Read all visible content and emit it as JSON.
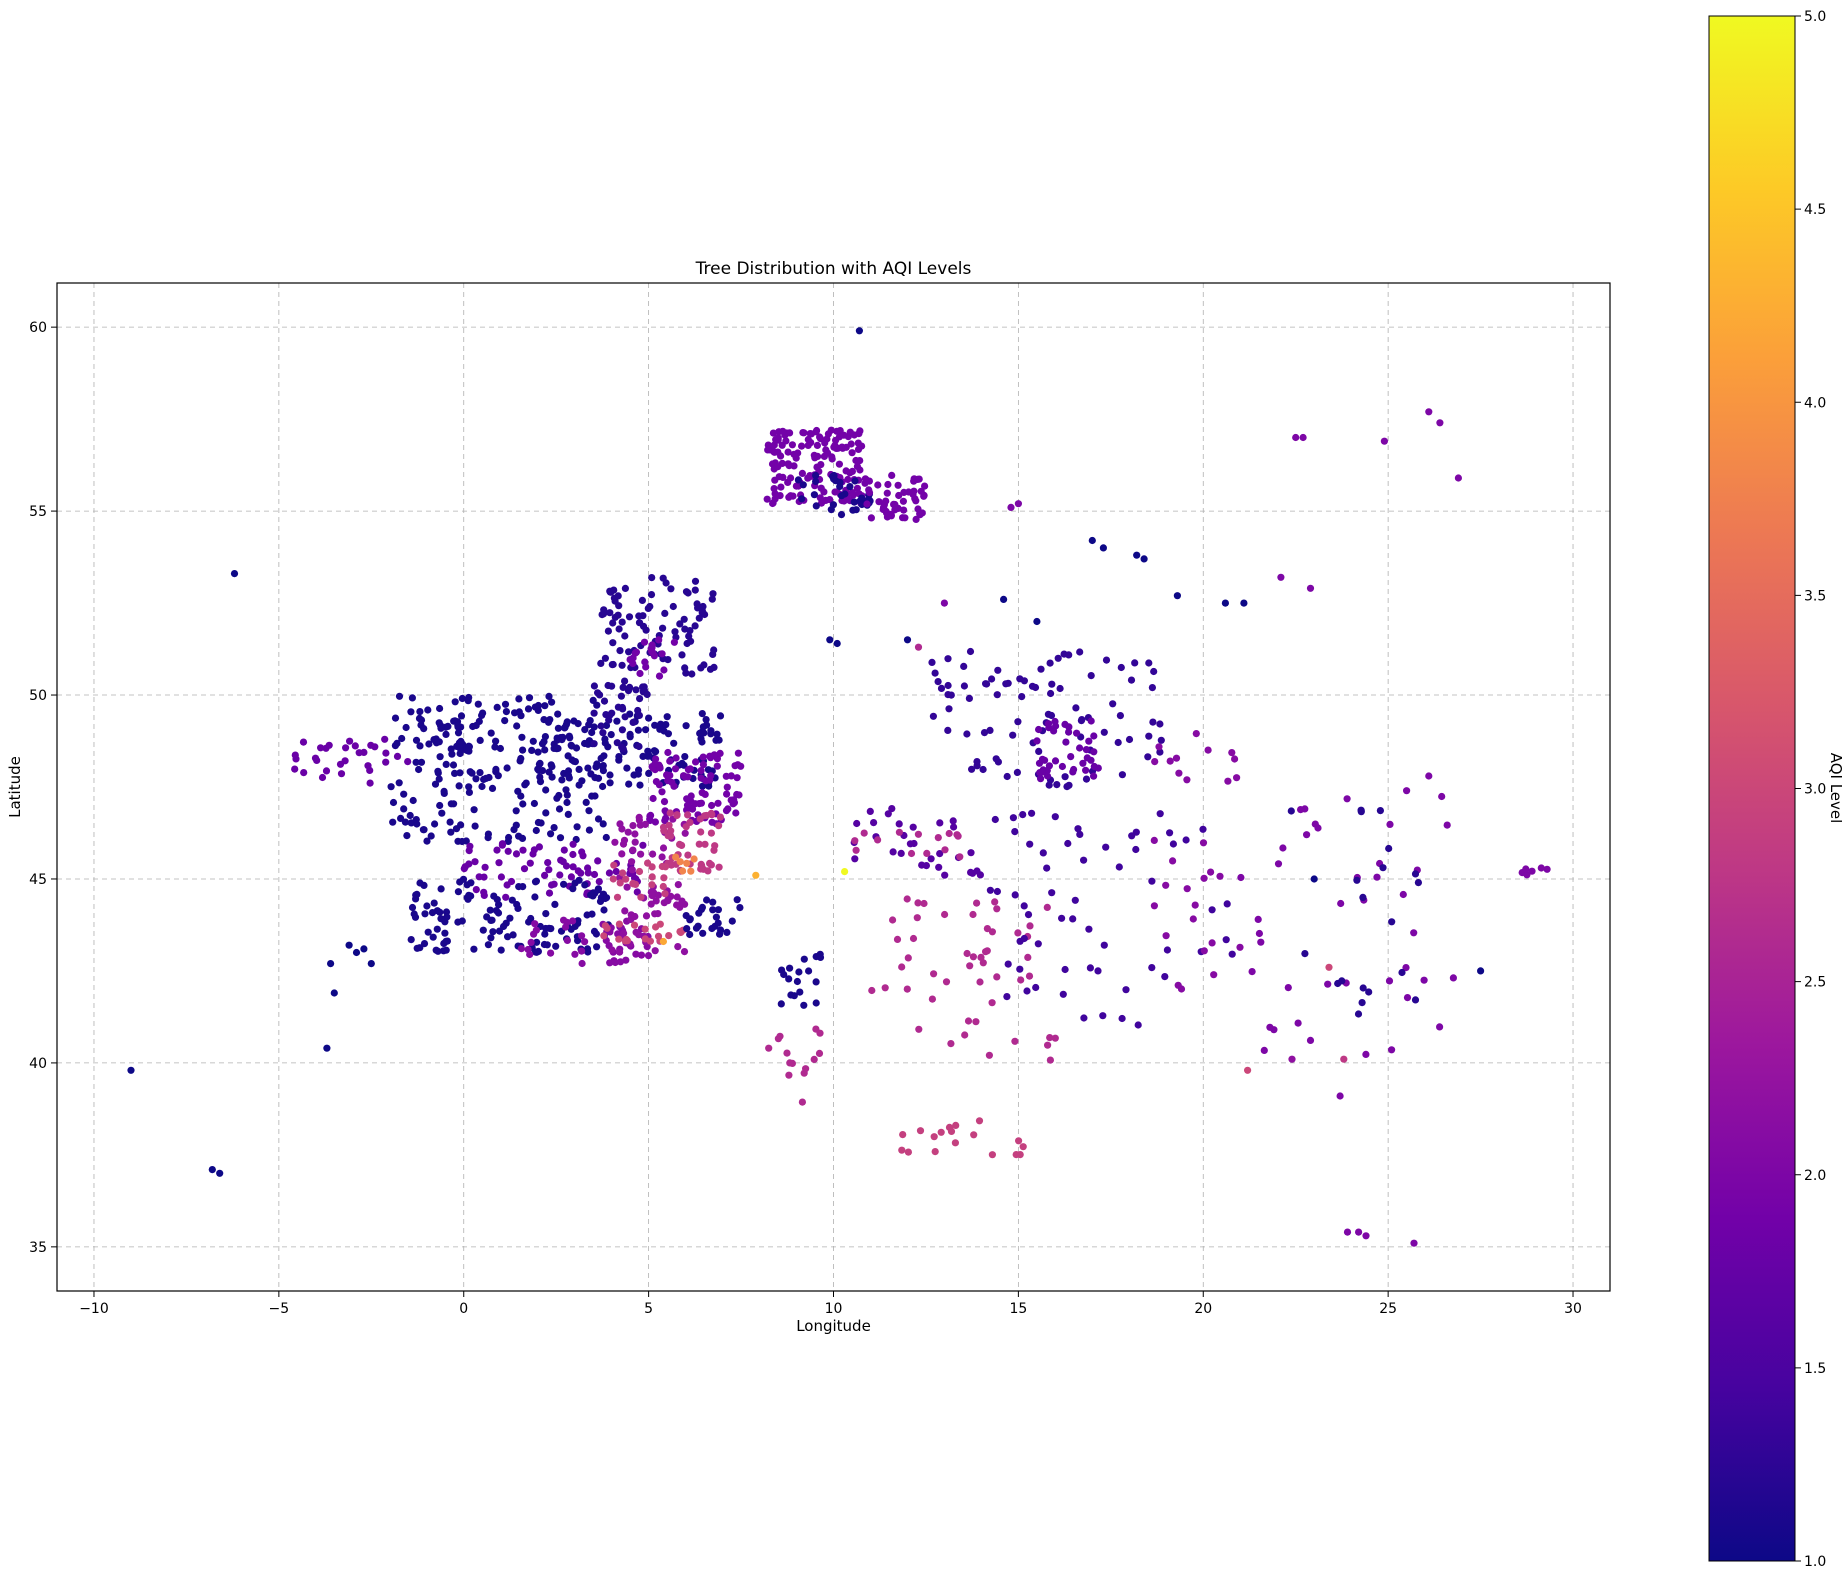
{
  "chart_data": {
    "type": "scatter",
    "title": "Tree Distribution with AQI Levels",
    "xlabel": "Longitude",
    "ylabel": "Latitude",
    "xlim": [
      -11,
      31
    ],
    "ylim": [
      33.8,
      61.2
    ],
    "xticks": [
      -10,
      -5,
      0,
      5,
      10,
      15,
      20,
      25,
      30
    ],
    "xtick_labels": [
      "−10",
      "−5",
      "0",
      "5",
      "10",
      "15",
      "20",
      "25",
      "30"
    ],
    "yticks": [
      35,
      40,
      45,
      50,
      55,
      60
    ],
    "ytick_labels": [
      "35",
      "40",
      "45",
      "50",
      "55",
      "60"
    ],
    "grid": true,
    "colormap": "plasma",
    "colorbar": {
      "label": "AQI Level",
      "range": [
        1.0,
        5.0
      ],
      "ticks": [
        1.0,
        1.5,
        2.0,
        2.5,
        3.0,
        3.5,
        4.0,
        4.5,
        5.0
      ],
      "tick_labels": [
        "1.0",
        "1.5",
        "2.0",
        "2.5",
        "3.0",
        "3.5",
        "4.0",
        "4.5",
        "5.0"
      ],
      "stops": [
        "#0d0887",
        "#46039f",
        "#7201a8",
        "#9c179e",
        "#bd3786",
        "#d8576b",
        "#ed7953",
        "#fb9f3a",
        "#fdca26",
        "#f0f921"
      ]
    },
    "clusters": [
      {
        "x": [
          -1.5,
          0.5
        ],
        "y": [
          48.3,
          49.3
        ],
        "aqi": 1.1,
        "n": 30
      },
      {
        "x": [
          -4.6,
          -1.5
        ],
        "y": [
          47.6,
          48.8
        ],
        "aqi": 1.8,
        "n": 30
      },
      {
        "x": [
          -2,
          4
        ],
        "y": [
          46,
          50
        ],
        "aqi": 1.1,
        "n": 200
      },
      {
        "x": [
          2,
          7
        ],
        "y": [
          47.5,
          49.5
        ],
        "aqi": 1.1,
        "n": 120
      },
      {
        "x": [
          5,
          7.5
        ],
        "y": [
          46.5,
          48.5
        ],
        "aqi": 1.9,
        "n": 90
      },
      {
        "x": [
          0,
          5
        ],
        "y": [
          44.5,
          46
        ],
        "aqi": 1.8,
        "n": 70
      },
      {
        "x": [
          -1.5,
          4
        ],
        "y": [
          43,
          45
        ],
        "aqi": 1.1,
        "n": 130
      },
      {
        "x": [
          1.5,
          5
        ],
        "y": [
          42.7,
          44
        ],
        "aqi": 2.1,
        "n": 45
      },
      {
        "x": [
          4,
          6
        ],
        "y": [
          43,
          47
        ],
        "aqi": 2.2,
        "n": 70
      },
      {
        "x": [
          5.3,
          7
        ],
        "y": [
          45.2,
          46.8
        ],
        "aqi": 2.8,
        "n": 45
      },
      {
        "x": [
          4,
          5.5
        ],
        "y": [
          44.5,
          45.5
        ],
        "aqi": 2.9,
        "n": 20
      },
      {
        "x": [
          3.5,
          6
        ],
        "y": [
          43.3,
          43.8
        ],
        "aqi": 3.0,
        "n": 20
      },
      {
        "x": [
          5.7,
          6.3
        ],
        "y": [
          45.2,
          45.6
        ],
        "aqi": 3.8,
        "n": 6
      },
      {
        "x": [
          6,
          7.5
        ],
        "y": [
          43.3,
          44.5
        ],
        "aqi": 1.1,
        "n": 25
      },
      {
        "x": [
          3.5,
          5
        ],
        "y": [
          48.5,
          50.5
        ],
        "aqi": 1.2,
        "n": 40
      },
      {
        "x": [
          3.7,
          6.8
        ],
        "y": [
          50.5,
          53.2
        ],
        "aqi": 1.2,
        "n": 90
      },
      {
        "x": [
          4.5,
          6
        ],
        "y": [
          50.5,
          51.5
        ],
        "aqi": 1.9,
        "n": 20
      },
      {
        "x": [
          8.2,
          10.8
        ],
        "y": [
          55.2,
          57.2
        ],
        "aqi": 1.9,
        "n": 150
      },
      {
        "x": [
          9,
          11
        ],
        "y": [
          54.9,
          56
        ],
        "aqi": 1.1,
        "n": 35
      },
      {
        "x": [
          10.8,
          12.5
        ],
        "y": [
          54.7,
          56
        ],
        "aqi": 1.9,
        "n": 50
      },
      {
        "x": [
          8.5,
          9.7
        ],
        "y": [
          41.4,
          43
        ],
        "aqi": 1.1,
        "n": 18
      },
      {
        "x": [
          8.2,
          9.7
        ],
        "y": [
          38.9,
          41
        ],
        "aqi": 2.6,
        "n": 14
      },
      {
        "x": [
          10.5,
          14
        ],
        "y": [
          45,
          47
        ],
        "aqi": 1.6,
        "n": 30
      },
      {
        "x": [
          10.5,
          13.5
        ],
        "y": [
          45.6,
          46.3
        ],
        "aqi": 2.6,
        "n": 14
      },
      {
        "x": [
          11,
          16
        ],
        "y": [
          40,
          44.5
        ],
        "aqi": 2.6,
        "n": 50
      },
      {
        "x": [
          11.8,
          15.2
        ],
        "y": [
          37.5,
          38.8
        ],
        "aqi": 2.9,
        "n": 18
      },
      {
        "x": [
          12.5,
          19
        ],
        "y": [
          47.5,
          51.2
        ],
        "aqi": 1.3,
        "n": 90
      },
      {
        "x": [
          15.5,
          17.2
        ],
        "y": [
          47.7,
          49.3
        ],
        "aqi": 1.8,
        "n": 40
      },
      {
        "x": [
          14,
          21
        ],
        "y": [
          41,
          47
        ],
        "aqi": 1.4,
        "n": 60
      },
      {
        "x": [
          18.5,
          21
        ],
        "y": [
          41.8,
          49
        ],
        "aqi": 2.1,
        "n": 30
      },
      {
        "x": [
          21,
          27
        ],
        "y": [
          40,
          47.5
        ],
        "aqi": 2.0,
        "n": 40
      },
      {
        "x": [
          22,
          26
        ],
        "y": [
          41,
          47
        ],
        "aqi": 1.2,
        "n": 20
      },
      {
        "x": [
          28.5,
          29.3
        ],
        "y": [
          45.1,
          45.3
        ],
        "aqi": 2.0,
        "n": 6
      }
    ],
    "points": [
      {
        "x": 10.3,
        "y": 45.2,
        "aqi": 5.0
      },
      {
        "x": 7.9,
        "y": 45.1,
        "aqi": 4.3
      },
      {
        "x": 5.4,
        "y": 43.3,
        "aqi": 4.2
      },
      {
        "x": 10.7,
        "y": 59.9,
        "aqi": 1.0
      },
      {
        "x": -6.2,
        "y": 53.3,
        "aqi": 1.0
      },
      {
        "x": -9.0,
        "y": 39.8,
        "aqi": 1.0
      },
      {
        "x": -6.8,
        "y": 37.1,
        "aqi": 1.0
      },
      {
        "x": -6.6,
        "y": 37.0,
        "aqi": 1.0
      },
      {
        "x": -3.7,
        "y": 40.4,
        "aqi": 1.0
      },
      {
        "x": -3.5,
        "y": 41.9,
        "aqi": 1.0
      },
      {
        "x": -2.7,
        "y": 43.1,
        "aqi": 1.0
      },
      {
        "x": -2.9,
        "y": 43.0,
        "aqi": 1.0
      },
      {
        "x": -3.1,
        "y": 43.2,
        "aqi": 1.0
      },
      {
        "x": -3.6,
        "y": 42.7,
        "aqi": 1.0
      },
      {
        "x": -2.5,
        "y": 42.7,
        "aqi": 1.0
      },
      {
        "x": 9.9,
        "y": 51.5,
        "aqi": 1.0
      },
      {
        "x": 10.1,
        "y": 51.4,
        "aqi": 1.0
      },
      {
        "x": 14.8,
        "y": 55.1,
        "aqi": 2.0
      },
      {
        "x": 15.0,
        "y": 55.2,
        "aqi": 2.0
      },
      {
        "x": 17.0,
        "y": 54.2,
        "aqi": 1.0
      },
      {
        "x": 17.3,
        "y": 54.0,
        "aqi": 1.0
      },
      {
        "x": 18.4,
        "y": 53.7,
        "aqi": 1.0
      },
      {
        "x": 18.2,
        "y": 53.8,
        "aqi": 1.0
      },
      {
        "x": 19.3,
        "y": 52.7,
        "aqi": 1.0
      },
      {
        "x": 20.6,
        "y": 52.5,
        "aqi": 1.0
      },
      {
        "x": 21.1,
        "y": 52.5,
        "aqi": 1.0
      },
      {
        "x": 22.1,
        "y": 53.2,
        "aqi": 2.0
      },
      {
        "x": 22.9,
        "y": 52.9,
        "aqi": 2.0
      },
      {
        "x": 22.7,
        "y": 57.0,
        "aqi": 2.0
      },
      {
        "x": 22.5,
        "y": 57.0,
        "aqi": 2.0
      },
      {
        "x": 24.9,
        "y": 56.9,
        "aqi": 2.0
      },
      {
        "x": 26.1,
        "y": 57.7,
        "aqi": 2.0
      },
      {
        "x": 26.4,
        "y": 57.4,
        "aqi": 2.0
      },
      {
        "x": 26.9,
        "y": 55.9,
        "aqi": 2.0
      },
      {
        "x": 27.5,
        "y": 42.5,
        "aqi": 1.0
      },
      {
        "x": 25.7,
        "y": 35.1,
        "aqi": 2.0
      },
      {
        "x": 24.4,
        "y": 35.3,
        "aqi": 2.0
      },
      {
        "x": 23.9,
        "y": 35.4,
        "aqi": 2.0
      },
      {
        "x": 24.2,
        "y": 35.4,
        "aqi": 2.0
      },
      {
        "x": 23.7,
        "y": 39.1,
        "aqi": 2.0
      },
      {
        "x": 23.8,
        "y": 40.1,
        "aqi": 2.8
      },
      {
        "x": 21.2,
        "y": 39.8,
        "aqi": 3.0
      },
      {
        "x": 22.4,
        "y": 40.1,
        "aqi": 2.2
      },
      {
        "x": 23.4,
        "y": 42.6,
        "aqi": 3.0
      },
      {
        "x": 26.1,
        "y": 47.8,
        "aqi": 2.0
      },
      {
        "x": 25.5,
        "y": 47.4,
        "aqi": 2.0
      },
      {
        "x": 23.0,
        "y": 45.0,
        "aqi": 1.0
      },
      {
        "x": 12.0,
        "y": 51.5,
        "aqi": 1.0
      },
      {
        "x": 14.6,
        "y": 52.6,
        "aqi": 1.0
      },
      {
        "x": 15.5,
        "y": 52.0,
        "aqi": 1.0
      },
      {
        "x": 13.0,
        "y": 52.5,
        "aqi": 2.0
      },
      {
        "x": 12.3,
        "y": 51.3,
        "aqi": 2.6
      }
    ]
  }
}
